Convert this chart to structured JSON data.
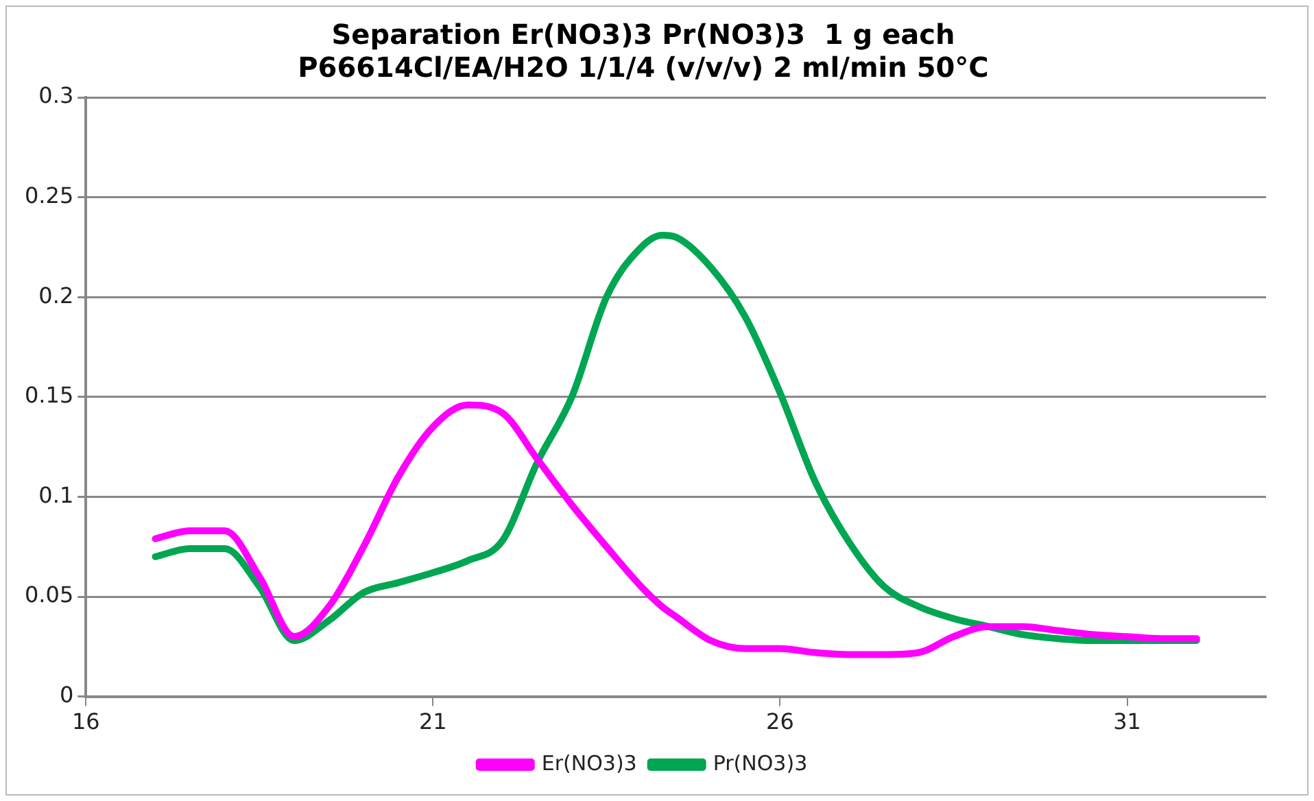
{
  "chart_data": {
    "type": "line",
    "title": "Separation Er(NO3)3 Pr(NO3)3  1 g each",
    "subtitle": "P66614Cl/EA/H2O 1/1/4 (v/v/v) 2 ml/min 50°C",
    "x": [
      17,
      17.5,
      18,
      18.5,
      19,
      19.5,
      20,
      20.5,
      21,
      21.5,
      22,
      22.5,
      23,
      23.5,
      24,
      24.3,
      24.5,
      25,
      25.5,
      26,
      26.5,
      27,
      27.5,
      28,
      28.5,
      29,
      29.5,
      30,
      30.5,
      31,
      31.5,
      32
    ],
    "series": [
      {
        "name": "Er(NO3)3",
        "color": "#ff00ff",
        "values": [
          0.079,
          0.083,
          0.083,
          0.06,
          0.03,
          0.045,
          0.075,
          0.11,
          0.135,
          0.146,
          0.142,
          0.119,
          0.096,
          0.075,
          0.055,
          0.045,
          0.04,
          0.028,
          0.024,
          0.024,
          0.022,
          0.021,
          0.021,
          0.022,
          0.03,
          0.035,
          0.035,
          0.033,
          0.031,
          0.03,
          0.029,
          0.029
        ]
      },
      {
        "name": "Pr(NO3)3",
        "color": "#00a651",
        "values": [
          0.07,
          0.074,
          0.074,
          0.055,
          0.028,
          0.038,
          0.052,
          0.057,
          0.062,
          0.068,
          0.078,
          0.117,
          0.15,
          0.2,
          0.225,
          0.231,
          0.23,
          0.215,
          0.19,
          0.152,
          0.108,
          0.077,
          0.055,
          0.045,
          0.039,
          0.035,
          0.031,
          0.029,
          0.028,
          0.028,
          0.028,
          0.028
        ]
      }
    ],
    "xlim": [
      16,
      33
    ],
    "xticks": [
      16,
      21,
      26,
      31
    ],
    "ylim": [
      0,
      0.3
    ],
    "yticks": [
      0,
      0.05,
      0.1,
      0.15,
      0.2,
      0.25,
      0.3
    ],
    "grid": "y",
    "legend": "bottom",
    "marker": "none",
    "line_style": "solid"
  }
}
